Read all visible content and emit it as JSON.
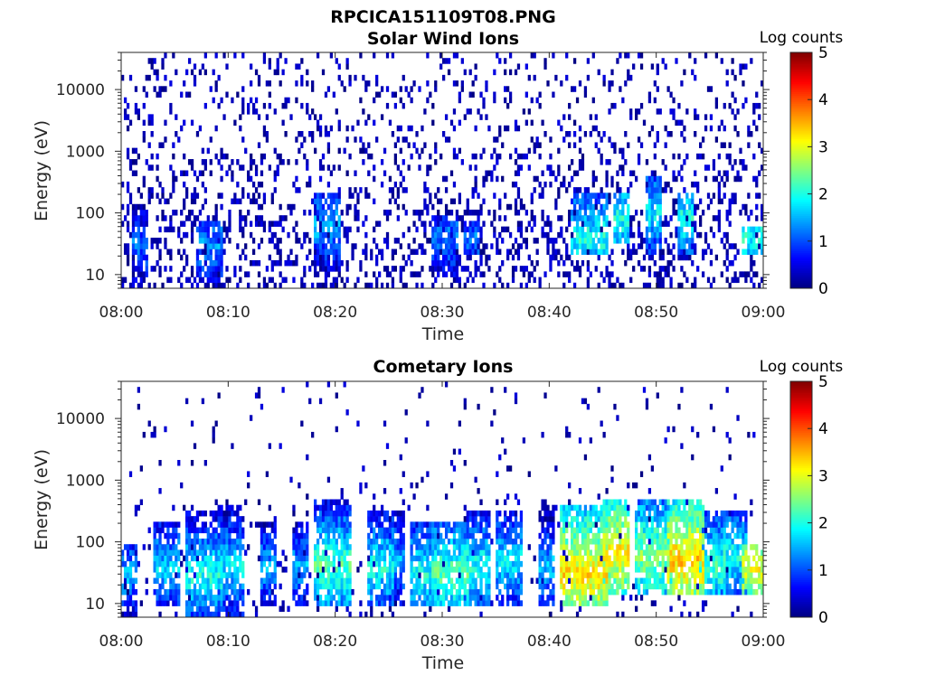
{
  "figure_title": "RPCICA151109T08.PNG",
  "chart_data": [
    {
      "type": "heatmap",
      "title": "Solar Wind Ions",
      "xlabel": "Time",
      "ylabel": "Energy (eV)",
      "x_ticks": [
        "08:00",
        "08:10",
        "08:20",
        "08:30",
        "08:40",
        "08:50",
        "09:00"
      ],
      "xlim": [
        "08:00",
        "09:00"
      ],
      "y_scale": "log",
      "y_ticks": [
        "10",
        "100",
        "1000",
        "10000"
      ],
      "ylim": [
        6,
        40000
      ],
      "colorbar": {
        "label": "Log counts",
        "ticks": [
          "0",
          "1",
          "2",
          "3",
          "4",
          "5"
        ],
        "range": [
          0,
          5
        ],
        "colormap": "jet"
      },
      "noise_level": 0.5,
      "background_density": 0.5,
      "bands": [
        {
          "start": "08:01",
          "end": "08:02",
          "e_low": 6,
          "e_high": 150,
          "peak_energy": 30,
          "level": 1.2
        },
        {
          "start": "08:07",
          "end": "08:09",
          "e_low": 6,
          "e_high": 80,
          "peak_energy": 30,
          "level": 1.4
        },
        {
          "start": "08:18",
          "end": "08:20",
          "e_low": 10,
          "e_high": 200,
          "peak_energy": 60,
          "level": 1.5
        },
        {
          "start": "08:29",
          "end": "08:31",
          "e_low": 10,
          "e_high": 100,
          "peak_energy": 40,
          "level": 1.3
        },
        {
          "start": "08:32",
          "end": "08:33",
          "e_low": 20,
          "e_high": 80,
          "peak_energy": 40,
          "level": 1.2
        },
        {
          "start": "08:42",
          "end": "08:45",
          "e_low": 20,
          "e_high": 200,
          "peak_energy": 40,
          "level": 2.0
        },
        {
          "start": "08:46",
          "end": "08:47",
          "e_low": 30,
          "e_high": 200,
          "peak_energy": 80,
          "level": 2.0
        },
        {
          "start": "08:49",
          "end": "08:50",
          "e_low": 20,
          "e_high": 400,
          "peak_energy": 100,
          "level": 1.8
        },
        {
          "start": "08:52",
          "end": "08:53",
          "e_low": 20,
          "e_high": 200,
          "peak_energy": 80,
          "level": 2.0
        },
        {
          "start": "08:58",
          "end": "09:00",
          "e_low": 20,
          "e_high": 60,
          "peak_energy": 40,
          "level": 2.0
        }
      ]
    },
    {
      "type": "heatmap",
      "title": "Cometary Ions",
      "xlabel": "Time",
      "ylabel": "Energy (eV)",
      "x_ticks": [
        "08:00",
        "08:10",
        "08:20",
        "08:30",
        "08:40",
        "08:50",
        "09:00"
      ],
      "xlim": [
        "08:00",
        "09:00"
      ],
      "y_scale": "log",
      "y_ticks": [
        "10",
        "100",
        "1000",
        "10000"
      ],
      "ylim": [
        6,
        40000
      ],
      "colorbar": {
        "label": "Log counts",
        "ticks": [
          "0",
          "1",
          "2",
          "3",
          "4",
          "5"
        ],
        "range": [
          0,
          5
        ],
        "colormap": "jet"
      },
      "noise_level": 0.5,
      "background_density": 0.12,
      "bands": [
        {
          "start": "08:00",
          "end": "08:01",
          "e_low": 6,
          "e_high": 100,
          "peak_energy": 30,
          "level": 1.5
        },
        {
          "start": "08:03",
          "end": "08:05",
          "e_low": 10,
          "e_high": 200,
          "peak_energy": 40,
          "level": 1.7
        },
        {
          "start": "08:06",
          "end": "08:09",
          "e_low": 6,
          "e_high": 300,
          "peak_energy": 30,
          "level": 2.0
        },
        {
          "start": "08:09",
          "end": "08:11",
          "e_low": 6,
          "e_high": 400,
          "peak_energy": 40,
          "level": 1.8
        },
        {
          "start": "08:13",
          "end": "08:14",
          "e_low": 10,
          "e_high": 200,
          "peak_energy": 40,
          "level": 1.5
        },
        {
          "start": "08:16",
          "end": "08:17",
          "e_low": 10,
          "e_high": 200,
          "peak_energy": 40,
          "level": 1.5
        },
        {
          "start": "08:18",
          "end": "08:21",
          "e_low": 10,
          "e_high": 500,
          "peak_energy": 40,
          "level": 2.3
        },
        {
          "start": "08:23",
          "end": "08:25",
          "e_low": 10,
          "e_high": 300,
          "peak_energy": 40,
          "level": 2.0
        },
        {
          "start": "08:25",
          "end": "08:26",
          "e_low": 10,
          "e_high": 300,
          "peak_energy": 50,
          "level": 1.5
        },
        {
          "start": "08:27",
          "end": "08:29",
          "e_low": 10,
          "e_high": 200,
          "peak_energy": 30,
          "level": 2.0
        },
        {
          "start": "08:29",
          "end": "08:32",
          "e_low": 10,
          "e_high": 200,
          "peak_energy": 30,
          "level": 2.3
        },
        {
          "start": "08:32",
          "end": "08:34",
          "e_low": 10,
          "e_high": 300,
          "peak_energy": 40,
          "level": 2.0
        },
        {
          "start": "08:35",
          "end": "08:37",
          "e_low": 10,
          "e_high": 300,
          "peak_energy": 50,
          "level": 1.8
        },
        {
          "start": "08:39",
          "end": "08:40",
          "e_low": 10,
          "e_high": 500,
          "peak_energy": 40,
          "level": 1.6
        },
        {
          "start": "08:41",
          "end": "08:45",
          "e_low": 10,
          "e_high": 400,
          "peak_energy": 30,
          "level": 3.3
        },
        {
          "start": "08:45",
          "end": "08:47",
          "e_low": 15,
          "e_high": 500,
          "peak_energy": 70,
          "level": 3.2
        },
        {
          "start": "08:48",
          "end": "08:51",
          "e_low": 15,
          "e_high": 500,
          "peak_energy": 60,
          "level": 2.6
        },
        {
          "start": "08:51",
          "end": "08:54",
          "e_low": 15,
          "e_high": 500,
          "peak_energy": 50,
          "level": 3.4
        },
        {
          "start": "08:54",
          "end": "08:56",
          "e_low": 15,
          "e_high": 300,
          "peak_energy": 40,
          "level": 2.2
        },
        {
          "start": "08:56",
          "end": "08:58",
          "e_low": 15,
          "e_high": 300,
          "peak_energy": 60,
          "level": 2.0
        },
        {
          "start": "08:58",
          "end": "09:00",
          "e_low": 15,
          "e_high": 100,
          "peak_energy": 35,
          "level": 3.0
        }
      ]
    }
  ]
}
